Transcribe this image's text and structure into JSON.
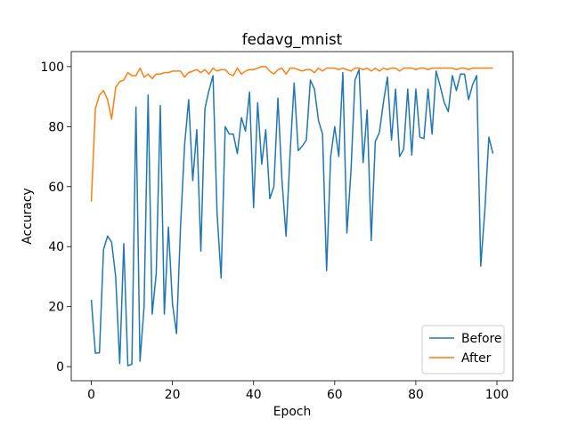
{
  "chart_data": {
    "type": "line",
    "title": "fedavg_mnist",
    "x_label": "Epoch",
    "y_label": "Accuracy",
    "x": [
      0,
      1,
      2,
      3,
      4,
      5,
      6,
      7,
      8,
      9,
      10,
      11,
      12,
      13,
      14,
      15,
      16,
      17,
      18,
      19,
      20,
      21,
      22,
      23,
      24,
      25,
      26,
      27,
      28,
      29,
      30,
      31,
      32,
      33,
      34,
      35,
      36,
      37,
      38,
      39,
      40,
      41,
      42,
      43,
      44,
      45,
      46,
      47,
      48,
      49,
      50,
      51,
      52,
      53,
      54,
      55,
      56,
      57,
      58,
      59,
      60,
      61,
      62,
      63,
      64,
      65,
      66,
      67,
      68,
      69,
      70,
      71,
      72,
      73,
      74,
      75,
      76,
      77,
      78,
      79,
      80,
      81,
      82,
      83,
      84,
      85,
      86,
      87,
      88,
      89,
      90,
      91,
      92,
      93,
      94,
      95,
      96,
      97,
      98,
      99
    ],
    "series": [
      {
        "name": "Before",
        "color": "#1f77b4",
        "values": [
          22.3,
          4.5,
          4.6,
          39,
          43.5,
          41.5,
          30,
          1,
          41,
          0.3,
          0.8,
          86.5,
          1.8,
          20,
          90.5,
          17.5,
          31,
          87,
          17.5,
          46.5,
          21,
          11,
          47,
          74,
          89,
          62,
          79,
          38.5,
          86,
          92,
          97,
          51,
          29.5,
          80,
          77.5,
          77.5,
          71,
          83,
          78.5,
          91.5,
          53,
          88,
          67.5,
          79,
          56,
          60,
          89.5,
          62,
          43.5,
          71,
          94.5,
          72,
          73.5,
          75.5,
          95.5,
          92.5,
          82,
          77.5,
          32,
          70,
          80,
          70,
          98,
          44.5,
          65,
          95.5,
          99,
          68,
          85.5,
          42,
          75,
          78,
          88,
          96.5,
          75.5,
          92.5,
          70,
          72.5,
          92.5,
          70.5,
          92.5,
          76.5,
          76,
          92.5,
          77.5,
          98.5,
          93.5,
          88,
          85,
          97,
          92,
          97.5,
          97.5,
          89,
          94,
          97,
          33.5,
          52,
          76.5,
          71
        ]
      },
      {
        "name": "After",
        "color": "#ff7f0e",
        "values": [
          55,
          86,
          90.5,
          92,
          89,
          82.5,
          93,
          95,
          95.5,
          98,
          97,
          97,
          99.5,
          96.5,
          97.5,
          96,
          97.5,
          97.5,
          98,
          98,
          98.5,
          98.5,
          98.5,
          96.5,
          98,
          98.5,
          99,
          98,
          99,
          97.5,
          99.5,
          98.5,
          99,
          99,
          97.5,
          97,
          99.5,
          97.5,
          98.5,
          99,
          99,
          99.5,
          100,
          100,
          98.5,
          97.5,
          99,
          99.5,
          97.5,
          99.5,
          99.5,
          99,
          98.5,
          99,
          99,
          98,
          99.5,
          98.5,
          99.5,
          99.5,
          99.5,
          99,
          99.5,
          99,
          98.5,
          99.5,
          99.5,
          99,
          99.5,
          98.5,
          99.5,
          98.5,
          99.5,
          99,
          99.5,
          99.5,
          98.5,
          99.5,
          99.5,
          99.5,
          99,
          99.5,
          99.5,
          99,
          99.5,
          99.5,
          99.5,
          99.5,
          99.5,
          99.5,
          99,
          99.5,
          99.5,
          99,
          99.5,
          99.5,
          99.5,
          99.5,
          99.5,
          99.5
        ]
      }
    ],
    "xlim": [
      -4.95,
      103.95
    ],
    "xticks": [
      0,
      20,
      40,
      60,
      80,
      100
    ],
    "ylim": [
      -4.7,
      105
    ],
    "yticks": [
      0,
      20,
      40,
      60,
      80,
      100
    ],
    "legend": "lower right"
  }
}
